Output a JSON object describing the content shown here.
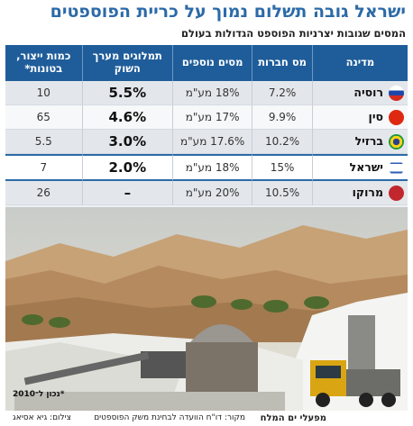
{
  "header": {
    "title": "ישראל גובה תשלום נמוך על כריית הפוספטים",
    "subtitle": "המסים שגובות יצרניות הפוספט הגדולות בעולם"
  },
  "table": {
    "columns": [
      "מדינה",
      "מס חברות",
      "מסים נוספים",
      "תמלוגים מערך השוק",
      "כמות ייצור, בטונות*"
    ],
    "rows": [
      [
        "רוסיה",
        "7.2%",
        "18% מע\"מ",
        "5.5%",
        "10"
      ],
      [
        "סין",
        "9.9%",
        "17% מע\"מ",
        "4.6%",
        "65"
      ],
      [
        "ברזיל",
        "10.2%",
        "17.6% מע\"מ",
        "3.0%",
        "5.5"
      ],
      [
        "ישראל",
        "15%",
        "18% מע\"מ",
        "2.0%",
        "7"
      ],
      [
        "מרוקו",
        "10.5%",
        "20% מע\"מ",
        "–",
        "26"
      ]
    ]
  },
  "footnote": "*נכון ל־2010",
  "caption": {
    "photo_title": "מפעלי ים המלח",
    "source": "מקור: דו\"ח הוועדה לבחינת משק הפוספטים",
    "credit": "צילום: גיא אסיאג"
  }
}
